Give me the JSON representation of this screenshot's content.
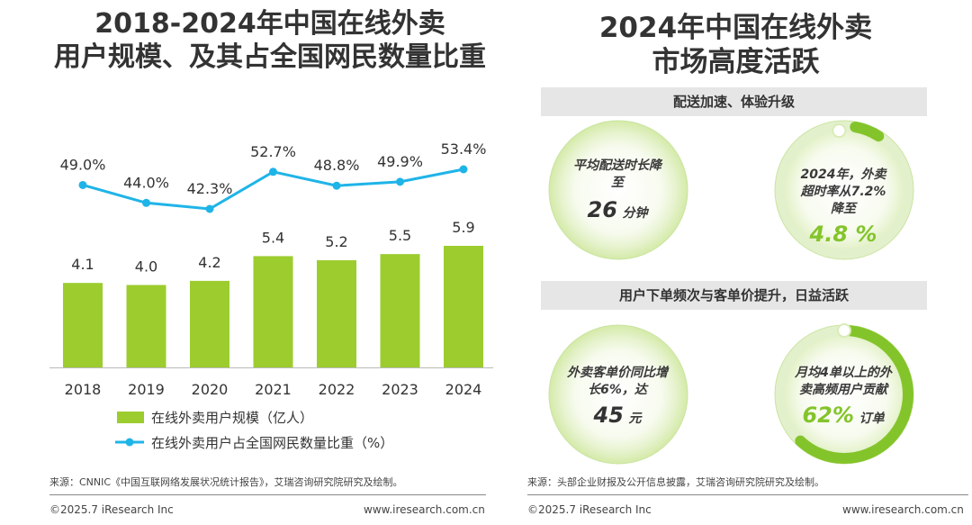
{
  "left_title": [
    "2018-2024年中国在线外卖",
    "用户规模、及其占全国网民数量比重"
  ],
  "right_title": [
    "2024年中国在线外卖",
    "市场高度活跃"
  ],
  "chart_data": {
    "type": "bar",
    "categories": [
      "2018",
      "2019",
      "2020",
      "2021",
      "2022",
      "2023",
      "2024"
    ],
    "series": [
      {
        "name": "在线外卖用户规模（亿人）",
        "type": "bar",
        "values": [
          4.1,
          4.0,
          4.2,
          5.4,
          5.2,
          5.5,
          5.9
        ],
        "labels": [
          "4.1",
          "4.0",
          "4.2",
          "5.4",
          "5.2",
          "5.5",
          "5.9"
        ],
        "color": "#9ccc2e"
      },
      {
        "name": "在线外卖用户占全国网民数量比重（%）",
        "type": "line",
        "values": [
          49.0,
          44.0,
          42.3,
          52.7,
          48.8,
          49.9,
          53.4
        ],
        "labels": [
          "49.0%",
          "44.0%",
          "42.3%",
          "52.7%",
          "48.8%",
          "49.9%",
          "53.4%"
        ],
        "color": "#1fb4e8"
      }
    ],
    "legend_position": "bottom-left",
    "grid": false
  },
  "banners": [
    "配送加速、体验升级",
    "用户下单频次与客单价提升，日益活跃"
  ],
  "circles": [
    {
      "lines": [
        "平均配送时长降",
        "至"
      ],
      "big": "26",
      "unit": "分钟",
      "progress": null
    },
    {
      "lines": [
        "2024年，外卖",
        "超时率从7.2%",
        "降至"
      ],
      "big": "4.8 %",
      "unit": "",
      "progress": 0.048
    },
    {
      "lines": [
        "外卖客单价同比增",
        "长6%，达"
      ],
      "big": "45",
      "unit": "元",
      "progress": null
    },
    {
      "lines": [
        "月均4单以上的外",
        "卖高频用户贡献"
      ],
      "big": "62%",
      "unit": "订单",
      "progress": 0.62
    }
  ],
  "source_left": "来源：CNNIC《中国互联网络发展状况统计报告》，艾瑞咨询研究院研究及绘制。",
  "source_right": "来源：头部企业财报及公开信息披露，艾瑞咨询研究院研究及绘制。",
  "footer": {
    "copyright": "©2025.7 iResearch Inc",
    "url": "www.iresearch.com.cn"
  },
  "colors": {
    "bar": "#9ccc2e",
    "line": "#1fb4e8",
    "banner": "#e6e6e6",
    "ring": "#84c42b"
  }
}
